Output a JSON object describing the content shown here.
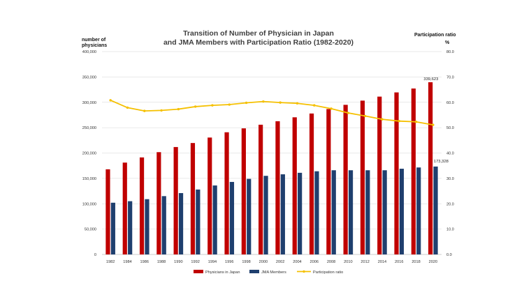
{
  "chart_data": {
    "type": "bar",
    "title_line1": "Transition of Number of Physician in Japan",
    "title_line2": "and JMA Members with Participation Ratio (1982-2020)",
    "ylabel_line1": "number of",
    "ylabel_line2": "physicians",
    "y2label_line1": "Participation ratio",
    "y2label_line2": "%",
    "ylim": [
      0,
      400000
    ],
    "y2lim": [
      0,
      80
    ],
    "yticks": [
      "0",
      "50,000",
      "100,000",
      "150,000",
      "200,000",
      "250,000",
      "300,000",
      "350,000",
      "400,000"
    ],
    "y2ticks": [
      "0.0",
      "10.0",
      "20.0",
      "30.0",
      "40.0",
      "50.0",
      "60.0",
      "70.0",
      "80.0"
    ],
    "categories": [
      "1982",
      "1984",
      "1986",
      "1988",
      "1990",
      "1992",
      "1994",
      "1996",
      "1998",
      "2000",
      "2002",
      "2004",
      "2006",
      "2008",
      "2010",
      "2012",
      "2014",
      "2016",
      "2018",
      "2020"
    ],
    "series": [
      {
        "name": "Physicians in Japan",
        "color": "#c00000",
        "axis": "left",
        "values": [
          167900,
          181100,
          191300,
          201700,
          211800,
          219700,
          230500,
          240900,
          248600,
          255800,
          262700,
          270400,
          277900,
          286700,
          295000,
          303300,
          311200,
          319500,
          327200,
          339623
        ]
      },
      {
        "name": "JMA Members",
        "color": "#1f3f6e",
        "axis": "left",
        "values": [
          102000,
          105000,
          109000,
          115000,
          121000,
          128000,
          136000,
          143000,
          149000,
          155000,
          158000,
          161000,
          164000,
          166000,
          166000,
          166000,
          166000,
          169000,
          171500,
          173328
        ]
      },
      {
        "name": "Participation ratio",
        "color": "#f5c000",
        "axis": "right",
        "type": "line",
        "values": [
          60.8,
          57.9,
          56.6,
          56.8,
          57.3,
          58.3,
          58.8,
          59.1,
          59.8,
          60.3,
          59.9,
          59.6,
          58.8,
          57.5,
          55.8,
          54.6,
          53.3,
          52.6,
          52.3,
          51.1
        ]
      }
    ],
    "data_labels": [
      {
        "series": 0,
        "index": 19,
        "text": "339,623"
      },
      {
        "series": 1,
        "index": 19,
        "text": "173,328"
      }
    ],
    "legend": [
      "Physicians in Japan",
      "JMA Members",
      "Participation ratio"
    ],
    "legend_position": "bottom",
    "grid": true
  }
}
